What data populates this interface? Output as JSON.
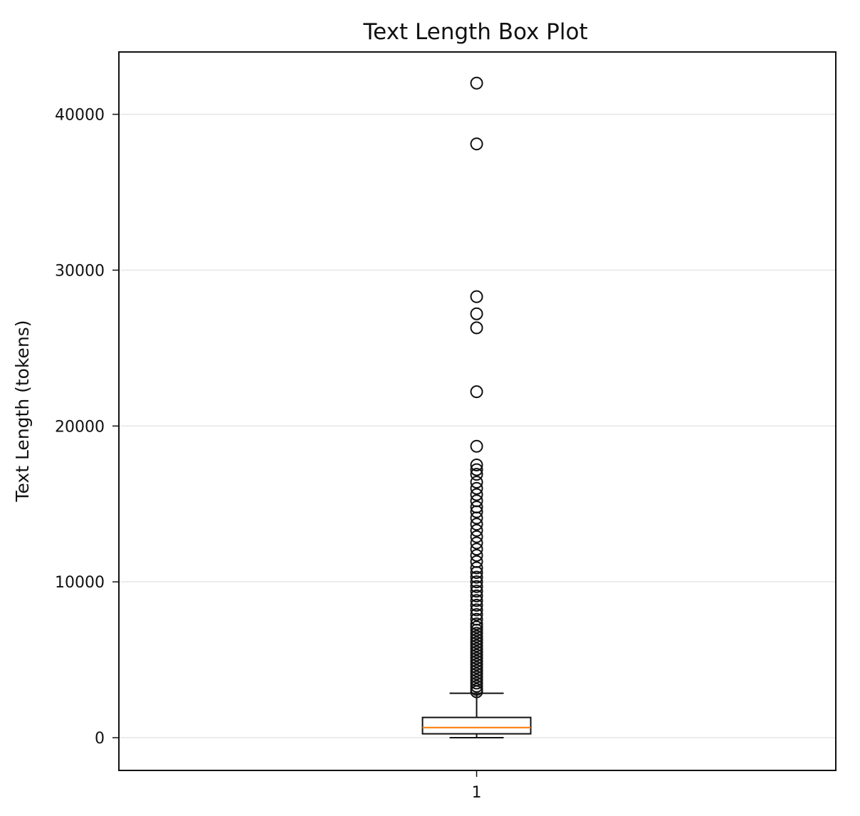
{
  "chart_data": {
    "type": "box",
    "title": "Text Length Box Plot",
    "xlabel": "",
    "ylabel": "Text Length (tokens)",
    "categories": [
      "1"
    ],
    "ylim": [
      -2100,
      44000
    ],
    "yticks": [
      0,
      10000,
      20000,
      30000,
      40000
    ],
    "ytick_labels": [
      "0",
      "10000",
      "20000",
      "30000",
      "40000"
    ],
    "grid": "horizontal",
    "boxes": [
      {
        "category": "1",
        "q1": 250,
        "median": 650,
        "q3": 1300,
        "whisker_low": 0,
        "whisker_high": 2850,
        "fliers": [
          2950,
          3100,
          3300,
          3500,
          3700,
          3900,
          4100,
          4300,
          4500,
          4700,
          4900,
          5100,
          5300,
          5500,
          5700,
          5900,
          6100,
          6300,
          6500,
          6700,
          6900,
          7100,
          7300,
          7600,
          7900,
          8200,
          8500,
          8800,
          9100,
          9400,
          9700,
          10000,
          10300,
          10600,
          10900,
          11300,
          11700,
          12100,
          12500,
          12900,
          13300,
          13700,
          14100,
          14500,
          14800,
          15200,
          15600,
          16000,
          16400,
          16900,
          17200,
          17500,
          18700,
          22200,
          26300,
          27200,
          28300,
          38100,
          42000
        ]
      }
    ]
  },
  "colors": {
    "box_stroke": "#111111",
    "median": "#ff7f0e",
    "grid": "#e6e6e6",
    "background": "#ffffff"
  }
}
